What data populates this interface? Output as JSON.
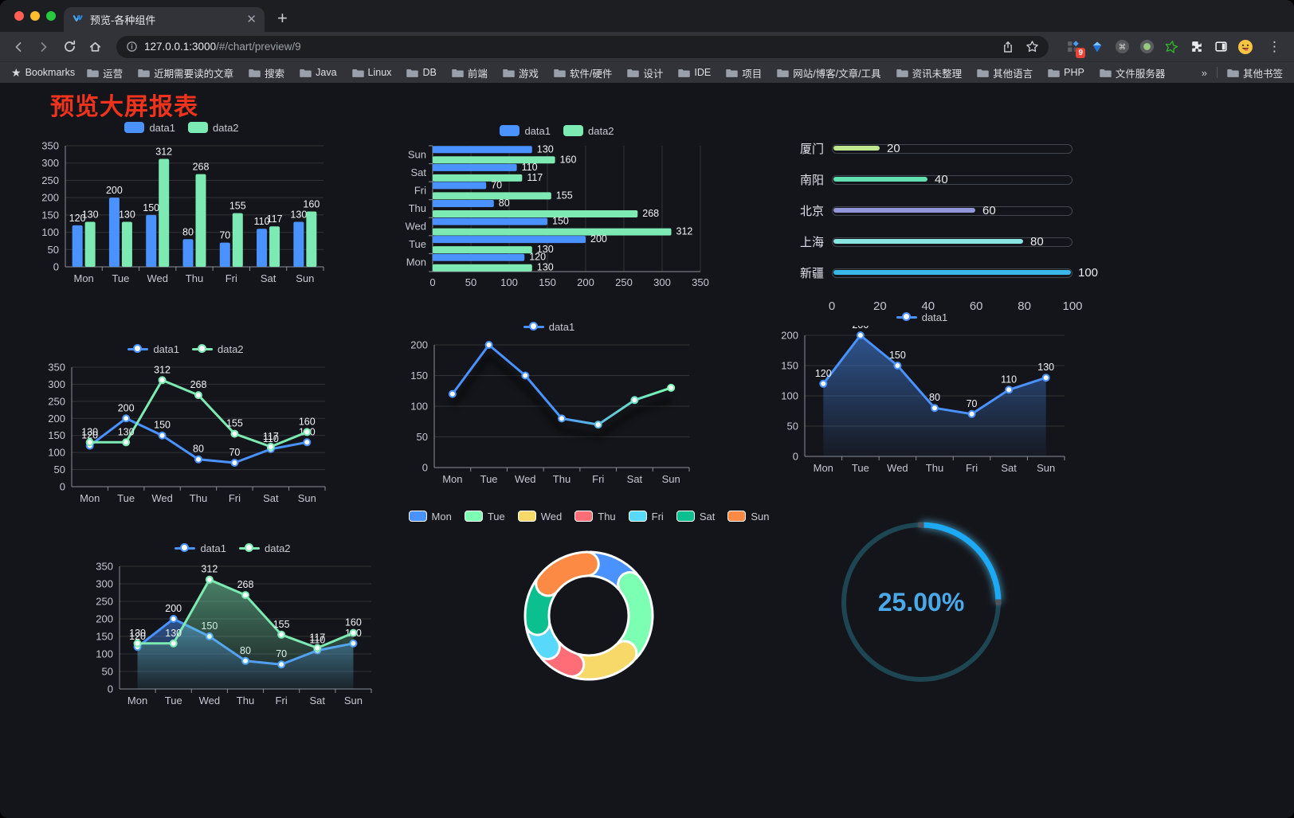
{
  "browser": {
    "tab_title": "预览-各种组件",
    "url": {
      "domain": "127.0.0.1:3000",
      "path": "/#/chart/preview/9"
    },
    "bookmarks": {
      "star_label": "Bookmarks",
      "folders": [
        "运营",
        "近期需要读的文章",
        "搜索",
        "Java",
        "Linux",
        "DB",
        "前端",
        "游戏",
        "软件/硬件",
        "设计",
        "IDE",
        "项目",
        "网站/博客/文章/工具",
        "资讯未整理",
        "其他语言",
        "PHP",
        "文件服务器"
      ],
      "overflow": "»",
      "other": "其他书签"
    },
    "extensions": {
      "badge": "9",
      "icons": [
        "metrics-grid-icon",
        "blue-gem-icon",
        "command-circle-icon",
        "record-circle-icon",
        "green-star-icon",
        "puzzle-icon",
        "side-panel-icon",
        "emoji-avatar-icon"
      ]
    }
  },
  "page": {
    "title": "预览大屏报表",
    "title_color": "#f0331c"
  },
  "chart_data": [
    {
      "id": "bar-grouped",
      "type": "bar",
      "legend_position": "top",
      "value_labels": true,
      "categories": [
        "Mon",
        "Tue",
        "Wed",
        "Thu",
        "Fri",
        "Sat",
        "Sun"
      ],
      "series": [
        {
          "name": "data1",
          "color": "#4992ff",
          "values": [
            120,
            200,
            150,
            80,
            70,
            110,
            130
          ]
        },
        {
          "name": "data2",
          "color": "#7ceab2",
          "values": [
            130,
            130,
            312,
            268,
            155,
            117,
            160
          ]
        }
      ],
      "ylim": [
        0,
        350
      ],
      "yticks": [
        0,
        50,
        100,
        150,
        200,
        250,
        300,
        350
      ]
    },
    {
      "id": "bar-horizontal",
      "type": "bar",
      "orientation": "horizontal",
      "legend_position": "top",
      "value_labels": true,
      "categories": [
        "Mon",
        "Tue",
        "Wed",
        "Thu",
        "Fri",
        "Sat",
        "Sun"
      ],
      "series": [
        {
          "name": "data1",
          "color": "#4992ff",
          "values": [
            120,
            200,
            150,
            80,
            70,
            110,
            130
          ]
        },
        {
          "name": "data2",
          "color": "#7ceab2",
          "values": [
            130,
            130,
            312,
            268,
            155,
            117,
            160
          ]
        }
      ],
      "xlim": [
        0,
        350
      ],
      "xticks": [
        0,
        50,
        100,
        150,
        200,
        250,
        300,
        350
      ]
    },
    {
      "id": "progress-bars",
      "type": "bar",
      "style": "capsule-progress",
      "items": [
        {
          "label": "厦门",
          "value": 20,
          "color": "#bfe790"
        },
        {
          "label": "南阳",
          "value": 40,
          "color": "#61e1af"
        },
        {
          "label": "北京",
          "value": 60,
          "color": "#9297db"
        },
        {
          "label": "上海",
          "value": 80,
          "color": "#88e5e2"
        },
        {
          "label": "新疆",
          "value": 100,
          "color": "#3ab7e8"
        }
      ],
      "xlim": [
        0,
        100
      ],
      "xticks": [
        0,
        20,
        40,
        60,
        80,
        100
      ]
    },
    {
      "id": "line-basic",
      "type": "line",
      "legend_position": "top",
      "value_labels": true,
      "categories": [
        "Mon",
        "Tue",
        "Wed",
        "Thu",
        "Fri",
        "Sat",
        "Sun"
      ],
      "series": [
        {
          "name": "data1",
          "color": "#4992ff",
          "values": [
            120,
            200,
            150,
            80,
            70,
            110,
            130
          ]
        },
        {
          "name": "data2",
          "color": "#7ceab2",
          "values": [
            130,
            130,
            312,
            268,
            155,
            117,
            160
          ]
        }
      ],
      "ylim": [
        0,
        350
      ],
      "yticks": [
        0,
        50,
        100,
        150,
        200,
        250,
        300,
        350
      ]
    },
    {
      "id": "line-gradient",
      "type": "line",
      "legend_position": "top",
      "value_labels": false,
      "shadow": true,
      "categories": [
        "Mon",
        "Tue",
        "Wed",
        "Thu",
        "Fri",
        "Sat",
        "Sun"
      ],
      "series": [
        {
          "name": "data1",
          "gradient": [
            "#4992ff",
            "#7cffb2"
          ],
          "values": [
            120,
            200,
            150,
            80,
            70,
            110,
            130
          ]
        }
      ],
      "ylim": [
        0,
        200
      ],
      "yticks": [
        0,
        50,
        100,
        150,
        200
      ]
    },
    {
      "id": "line-area",
      "type": "area",
      "legend_position": "top",
      "value_labels": true,
      "categories": [
        "Mon",
        "Tue",
        "Wed",
        "Thu",
        "Fri",
        "Sat",
        "Sun"
      ],
      "series": [
        {
          "name": "data1",
          "color": "#4992ff",
          "values": [
            120,
            200,
            150,
            80,
            70,
            110,
            130
          ]
        }
      ],
      "ylim": [
        0,
        200
      ],
      "yticks": [
        0,
        50,
        100,
        150,
        200
      ]
    },
    {
      "id": "line-area-double",
      "type": "area",
      "legend_position": "top",
      "value_labels": true,
      "categories": [
        "Mon",
        "Tue",
        "Wed",
        "Thu",
        "Fri",
        "Sat",
        "Sun"
      ],
      "series": [
        {
          "name": "data1",
          "color": "#4992ff",
          "values": [
            120,
            200,
            150,
            80,
            70,
            110,
            130
          ]
        },
        {
          "name": "data2",
          "color": "#7ceab2",
          "values": [
            130,
            130,
            312,
            268,
            155,
            117,
            160
          ]
        }
      ],
      "ylim": [
        0,
        350
      ],
      "yticks": [
        0,
        50,
        100,
        150,
        200,
        250,
        300,
        350
      ]
    },
    {
      "id": "donut",
      "type": "pie",
      "legend_position": "top",
      "labels": [
        "Mon",
        "Tue",
        "Wed",
        "Thu",
        "Fri",
        "Sat",
        "Sun"
      ],
      "values": [
        120,
        200,
        150,
        80,
        70,
        110,
        130
      ],
      "colors": [
        "#4992ff",
        "#7cffb2",
        "#f7d96a",
        "#ff6e76",
        "#58d9f9",
        "#0bbf8e",
        "#fc8a45"
      ]
    },
    {
      "id": "gauge",
      "type": "gauge",
      "value": 25,
      "max": 100,
      "label": "25.00%",
      "color": "#1ba9f5",
      "track_color": "#1d4552",
      "text_color": "#4aa9e9"
    }
  ]
}
